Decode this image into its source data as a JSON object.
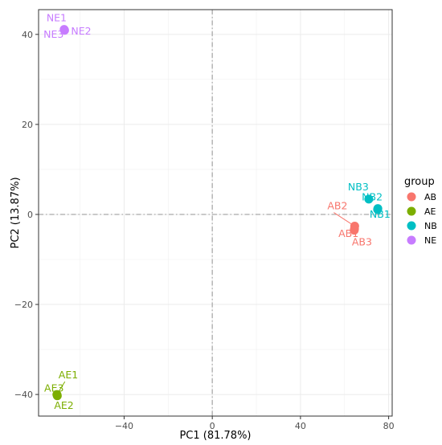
{
  "chart_data": {
    "type": "scatter",
    "title": "",
    "xlabel": "PC1 (81.78%)",
    "ylabel": "PC2 (13.87%)",
    "xlim": [
      -78.8,
      81.6
    ],
    "ylim": [
      -44.8,
      45.5
    ],
    "xticks": [
      -40,
      0,
      40,
      80
    ],
    "yticks": [
      -40,
      -20,
      0,
      20,
      40
    ],
    "grid": true,
    "reference_lines": {
      "x": 0,
      "y": 0,
      "style": "dashdot"
    },
    "legend": {
      "title": "group",
      "position": "right",
      "entries": [
        {
          "name": "AB",
          "color": "#F8766D"
        },
        {
          "name": "AE",
          "color": "#7CAE00"
        },
        {
          "name": "NB",
          "color": "#00BFC4"
        },
        {
          "name": "NE",
          "color": "#C77CFF"
        }
      ]
    },
    "series": [
      {
        "name": "AB",
        "color": "#F8766D",
        "points": [
          {
            "label": "AB1",
            "x": 64.5,
            "y": -3.2
          },
          {
            "label": "AB2",
            "x": 64.6,
            "y": -2.6
          },
          {
            "label": "AB3",
            "x": 64.4,
            "y": -3.5
          }
        ]
      },
      {
        "name": "AE",
        "color": "#7CAE00",
        "points": [
          {
            "label": "AE1",
            "x": -70.5,
            "y": -40.0
          },
          {
            "label": "AE2",
            "x": -70.3,
            "y": -40.3
          },
          {
            "label": "AE3",
            "x": -70.4,
            "y": -40.1
          }
        ]
      },
      {
        "name": "NB",
        "color": "#00BFC4",
        "points": [
          {
            "label": "NB1",
            "x": 75.0,
            "y": 1.1
          },
          {
            "label": "NB2",
            "x": 75.1,
            "y": 1.3
          },
          {
            "label": "NB3",
            "x": 71.0,
            "y": 3.4
          }
        ]
      },
      {
        "name": "NE",
        "color": "#C77CFF",
        "points": [
          {
            "label": "NE1",
            "x": -67.2,
            "y": 41.1
          },
          {
            "label": "NE2",
            "x": -67.0,
            "y": 40.9
          },
          {
            "label": "NE3",
            "x": -67.1,
            "y": 41.0
          }
        ]
      }
    ]
  }
}
